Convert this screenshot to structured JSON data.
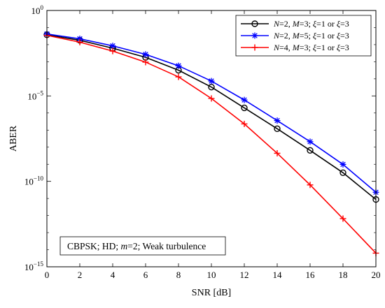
{
  "chart_data": {
    "type": "line",
    "xlabel": "SNR [dB]",
    "ylabel": "ABER",
    "x": [
      0,
      2,
      4,
      6,
      8,
      10,
      12,
      14,
      16,
      18,
      20
    ],
    "xlim": [
      0,
      20
    ],
    "ylim": [
      1e-15,
      1
    ],
    "yscale": "log",
    "x_ticks": [
      "0",
      "2",
      "4",
      "6",
      "8",
      "10",
      "12",
      "14",
      "16",
      "18",
      "20"
    ],
    "y_ticks": [
      {
        "value": 1,
        "base": "10",
        "exp": "0"
      },
      {
        "value": 1e-05,
        "base": "10",
        "exp": "−5"
      },
      {
        "value": 1e-10,
        "base": "10",
        "exp": "−10"
      },
      {
        "value": 1e-15,
        "base": "10",
        "exp": "−15"
      }
    ],
    "grid": false,
    "legend_position": "top-right",
    "series": [
      {
        "name": "N=2, M=3; ξ=1 or ξ=3",
        "name_parts": {
          "v1": "N",
          "e1": "=2,  ",
          "v2": "M",
          "e2": "=3; ",
          "v3": "ξ",
          "e3": "=1 or ",
          "v4": "ξ",
          "e4": "=3"
        },
        "color": "#000000",
        "marker": "circle",
        "values": [
          0.038,
          0.018,
          0.0062,
          0.0018,
          0.00032,
          3.3e-05,
          2e-06,
          1.2e-07,
          6.5e-09,
          3.2e-10,
          8.7e-12
        ]
      },
      {
        "name": "N=2, M=5; ξ=1 or ξ=3",
        "name_parts": {
          "v1": "N",
          "e1": "=2,  ",
          "v2": "M",
          "e2": "=5; ",
          "v3": "ξ",
          "e3": "=1 or ",
          "v4": "ξ",
          "e4": "=3"
        },
        "color": "#0000ff",
        "marker": "asterisk",
        "values": [
          0.042,
          0.022,
          0.0085,
          0.0027,
          0.00058,
          7.4e-05,
          5.8e-06,
          3.6e-07,
          2.1e-08,
          9.8e-10,
          2.3e-11
        ]
      },
      {
        "name": "N=4, M=3; ξ=1 or ξ=3",
        "name_parts": {
          "v1": "N",
          "e1": "=4,  ",
          "v2": "M",
          "e2": "=3; ",
          "v3": "ξ",
          "e3": "=1 or ",
          "v4": "ξ",
          "e4": "=3"
        },
        "color": "#ff0000",
        "marker": "plus",
        "values": [
          0.035,
          0.014,
          0.0042,
          0.00095,
          0.00013,
          7.1e-06,
          2.3e-07,
          4.4e-09,
          6.2e-11,
          6.6e-13,
          6.3e-15
        ]
      }
    ],
    "annotation": {
      "p1": "CBPSK; HD; ",
      "v": "m",
      "p2": "=2; Weak turbulence"
    }
  }
}
